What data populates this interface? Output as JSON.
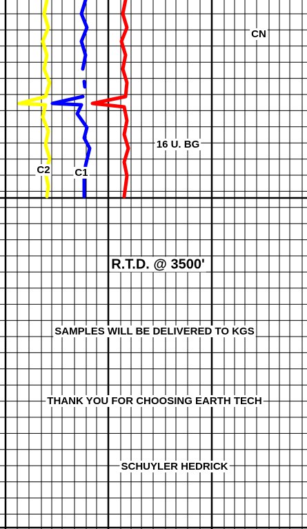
{
  "labels": {
    "cn": "CN",
    "background_gas": "16 U. BG",
    "c2": "C2",
    "c1": "C1"
  },
  "notes": [
    "R.T.D. @ 3500'",
    "SAMPLES WILL BE DELIVERED TO KGS",
    "THANK YOU FOR CHOOSING EARTH TECH",
    "SCHUYLER HEDRICK"
  ]
}
